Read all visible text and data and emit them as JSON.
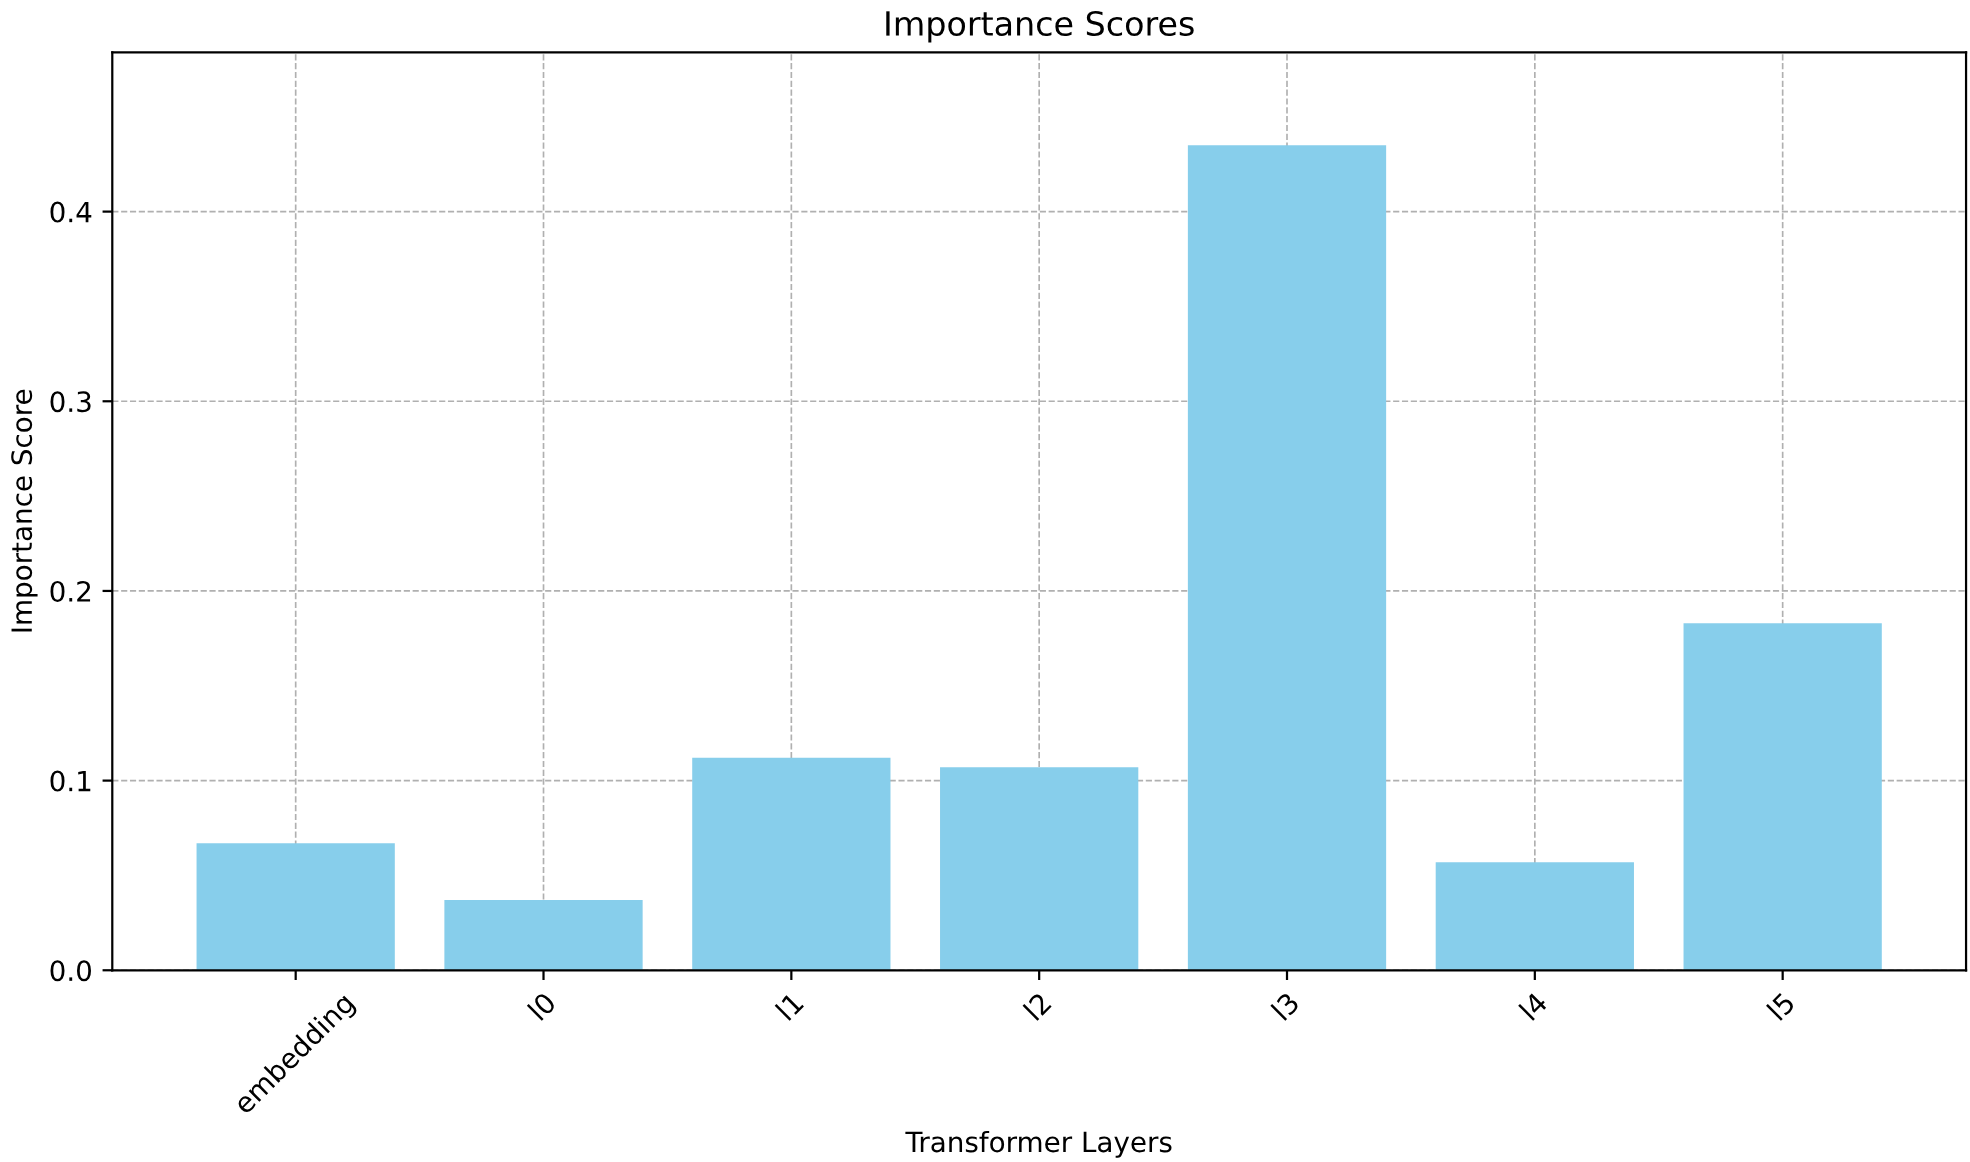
{
  "chart_data": {
    "type": "bar",
    "title": "Importance Scores",
    "xlabel": "Transformer Layers",
    "ylabel": "Importance Score",
    "categories": [
      "embedding",
      "l0",
      "l1",
      "l2",
      "l3",
      "l4",
      "l5"
    ],
    "values": [
      0.067,
      0.037,
      0.112,
      0.107,
      0.435,
      0.057,
      0.183
    ],
    "color": "#87ceeb",
    "ylim": [
      0,
      0.484
    ],
    "yticks": [
      {
        "value": 0,
        "label": "0.0"
      },
      0.1,
      0.2,
      0.3,
      0.4
    ],
    "grid": true,
    "line_style": "dashed"
  }
}
